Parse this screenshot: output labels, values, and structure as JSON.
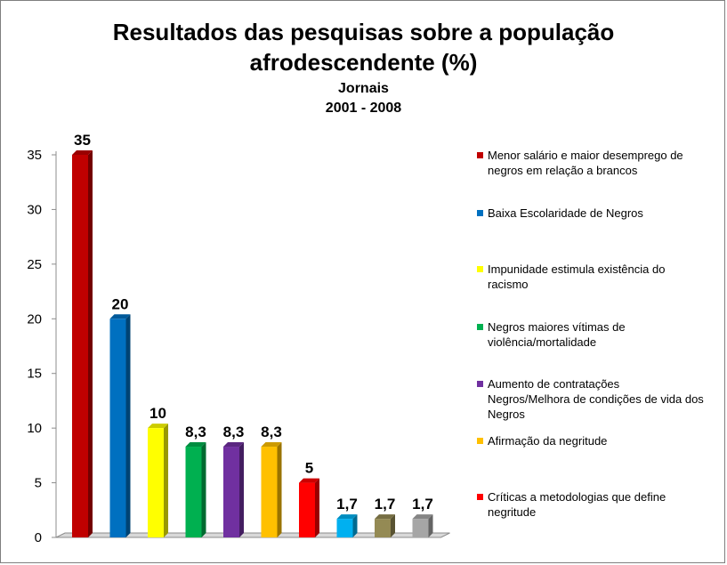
{
  "chart_data": {
    "type": "bar",
    "title": "Resultados das pesquisas sobre a população afrodescendente (%)",
    "title_lines": [
      "Resultados das pesquisas sobre a população",
      "afrodescendente (%)"
    ],
    "subtitle_lines": [
      "Jornais",
      "2001 - 2008"
    ],
    "ylim": [
      0,
      35
    ],
    "yticks": [
      0,
      5,
      10,
      15,
      20,
      25,
      30,
      35
    ],
    "grid": false,
    "legend_position": "right",
    "series": [
      {
        "name": "Menor salário e maior desemprego de negros em relação a brancos",
        "value": 35,
        "label": "35",
        "color": "#c00000"
      },
      {
        "name": "Baixa Escolaridade de Negros",
        "value": 20,
        "label": "20",
        "color": "#0070c0"
      },
      {
        "name": "Impunidade estimula existência do racismo",
        "value": 10,
        "label": "10",
        "color": "#ffff00"
      },
      {
        "name": "Negros maiores vítimas de violência/mortalidade",
        "value": 8.3,
        "label": "8,3",
        "color": "#00b050"
      },
      {
        "name": "Aumento de contratações Negros/Melhora de condições de vida dos Negros",
        "value": 8.3,
        "label": "8,3",
        "color": "#7030a0"
      },
      {
        "name": "Afirmação da negritude",
        "value": 8.3,
        "label": "8,3",
        "color": "#ffc000"
      },
      {
        "name": "Críticas a metodologias que define negritude",
        "value": 5,
        "label": "5",
        "color": "#ff0000"
      },
      {
        "name": "",
        "value": 1.7,
        "label": "1,7",
        "color": "#00b0f0"
      },
      {
        "name": "",
        "value": 1.7,
        "label": "1,7",
        "color": "#948a54"
      },
      {
        "name": "",
        "value": 1.7,
        "label": "1,7",
        "color": "#a6a6a6"
      }
    ]
  },
  "legend": {
    "items": [
      {
        "lines": [
          "Menor salário e maior desemprego de",
          "negros em relação a brancos"
        ],
        "color": "#c00000"
      },
      {
        "lines": [
          "Baixa Escolaridade de Negros"
        ],
        "color": "#0070c0"
      },
      {
        "lines": [
          "Impunidade estimula existência do",
          "racismo"
        ],
        "color": "#ffff00"
      },
      {
        "lines": [
          "Negros maiores vítimas de",
          "violência/mortalidade"
        ],
        "color": "#00b050"
      },
      {
        "lines": [
          "Aumento de contratações",
          "Negros/Melhora de condições de vida dos",
          "Negros"
        ],
        "color": "#7030a0"
      },
      {
        "lines": [
          "Afirmação da negritude"
        ],
        "color": "#ffc000"
      },
      {
        "lines": [
          "Críticas a metodologias que define",
          "negritude"
        ],
        "color": "#ff0000"
      }
    ]
  }
}
